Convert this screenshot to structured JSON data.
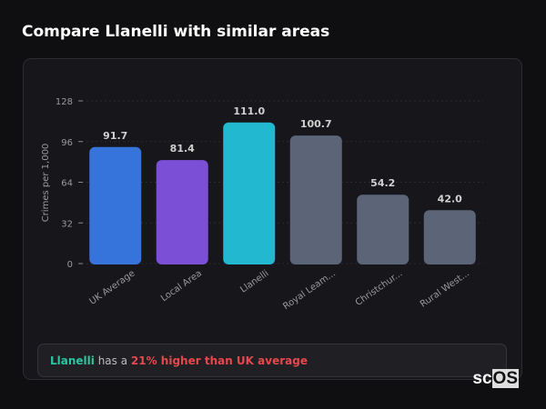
{
  "header": {
    "title": "Compare Llanelli with similar areas"
  },
  "chart_data": {
    "type": "bar",
    "title": "",
    "ylabel": "Crimes per 1,000",
    "xlabel": "",
    "ylim": [
      0,
      128
    ],
    "yticks": [
      0,
      32,
      64,
      96,
      128
    ],
    "grid": true,
    "categories": [
      "UK Average",
      "Local Area",
      "Llanelli",
      "Royal Leam...",
      "Christchur...",
      "Rural West..."
    ],
    "values": [
      91.7,
      81.4,
      111.0,
      100.7,
      54.2,
      42.0
    ],
    "value_labels": [
      "91.7",
      "81.4",
      "111.0",
      "100.7",
      "54.2",
      "42.0"
    ],
    "colors": [
      "#3674db",
      "#7b4fd6",
      "#22b8cf",
      "#5b6577",
      "#5b6577",
      "#5b6577"
    ]
  },
  "insight": {
    "area": "Llanelli",
    "middle": " has a ",
    "comparison": "21% higher than UK average",
    "area_color": "#2ec4a0",
    "comparison_color": "#e5484d"
  },
  "logo": {
    "text_a": "sc",
    "text_b": "OS"
  }
}
